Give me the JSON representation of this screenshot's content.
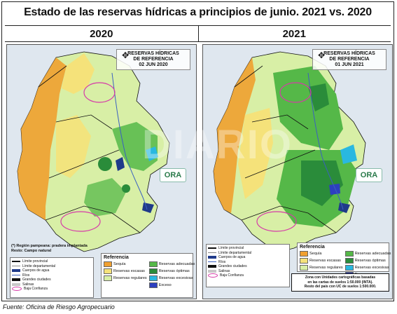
{
  "title": "Estado de las reservas hídricas a principios de junio. 2021 vs. 2020",
  "years": {
    "left": "2020",
    "right": "2021"
  },
  "maps": {
    "left": {
      "title_line1": "RESERVAS HÍDRICAS",
      "title_line2": "DE REFERENCIA",
      "date": "02 JUN 2020"
    },
    "right": {
      "title_line1": "RESERVAS HÍDRICAS",
      "title_line2": "DE REFERENCIA",
      "date": "01 JUN 2021"
    }
  },
  "logo_text": "ORA",
  "watermark_text": "DIARIO",
  "region_note": {
    "line1": "(*) Región pampeana: pradera implantada",
    "line2": "Resto: Campo natural"
  },
  "legend_title": "Referencia",
  "legend_items": [
    {
      "label": "Sequía",
      "color": "#f0a030"
    },
    {
      "label": "Reservas adecuadas",
      "color": "#55b848"
    },
    {
      "label": "Reservas escasas",
      "color": "#f5e27a"
    },
    {
      "label": "Reservas óptimas",
      "color": "#2a8c3a"
    },
    {
      "label": "Reservas regulares",
      "color": "#d8efa6"
    },
    {
      "label": "Reservas excesivas",
      "color": "#29b8e0"
    },
    {
      "label": "",
      "color": ""
    },
    {
      "label": "Exceso",
      "color": "#2d3fbf"
    }
  ],
  "small_legend": [
    {
      "label": "Límite provincial",
      "kind": "line",
      "color": "#111"
    },
    {
      "label": "Límite departamental",
      "kind": "line",
      "color": "#888"
    },
    {
      "label": "Cuerpos de agua",
      "kind": "box",
      "color": "#1f3a8a"
    },
    {
      "label": "Ríos",
      "kind": "line",
      "color": "#3a60c0"
    },
    {
      "label": "Grandes ciudades",
      "kind": "box",
      "color": "#111"
    },
    {
      "label": "Salinas",
      "kind": "box",
      "color": "#c8c8c8"
    },
    {
      "label": "Baja Confianza",
      "kind": "ellipse",
      "color": "#d63aa8"
    }
  ],
  "right_note": {
    "line1": "Zona con Unidades cartográficas basadas",
    "line2": "en las cartas de suelos 1:50.000 (INTA).",
    "line3": "Resto del país con UC de suelos 1:500.000."
  },
  "source": "Fuente: Oficina de Riesgo Agropecuario",
  "colors": {
    "sequia": "#f0a030",
    "escasas": "#f5e27a",
    "regulares": "#d8efa6",
    "adecuadas": "#55b848",
    "optimas": "#2a8c3a",
    "excesivas": "#29b8e0",
    "exceso": "#2d3fbf",
    "water": "#1f3a8a"
  }
}
